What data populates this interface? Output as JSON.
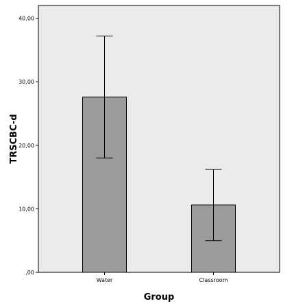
{
  "chart_data": {
    "type": "bar",
    "title": "",
    "xlabel": "Group",
    "ylabel": "TRSCBC-d",
    "categories": [
      "Water",
      "Classroom"
    ],
    "values": [
      27.6,
      10.6
    ],
    "error_bars": [
      {
        "low": 18.0,
        "high": 37.2
      },
      {
        "low": 5.0,
        "high": 16.2
      }
    ],
    "ylim": [
      0,
      42
    ],
    "yticks": [
      0,
      10,
      20,
      30,
      40
    ],
    "ytick_labels": [
      ",00",
      "10,00",
      "20,00",
      "30,00",
      "40,00"
    ],
    "grid": false,
    "legend": "none",
    "colors": {
      "plot_background": "#ebebeb",
      "bar_fill": "#9b9b9b",
      "bar_stroke": "#000000",
      "axis": "#000000"
    }
  }
}
